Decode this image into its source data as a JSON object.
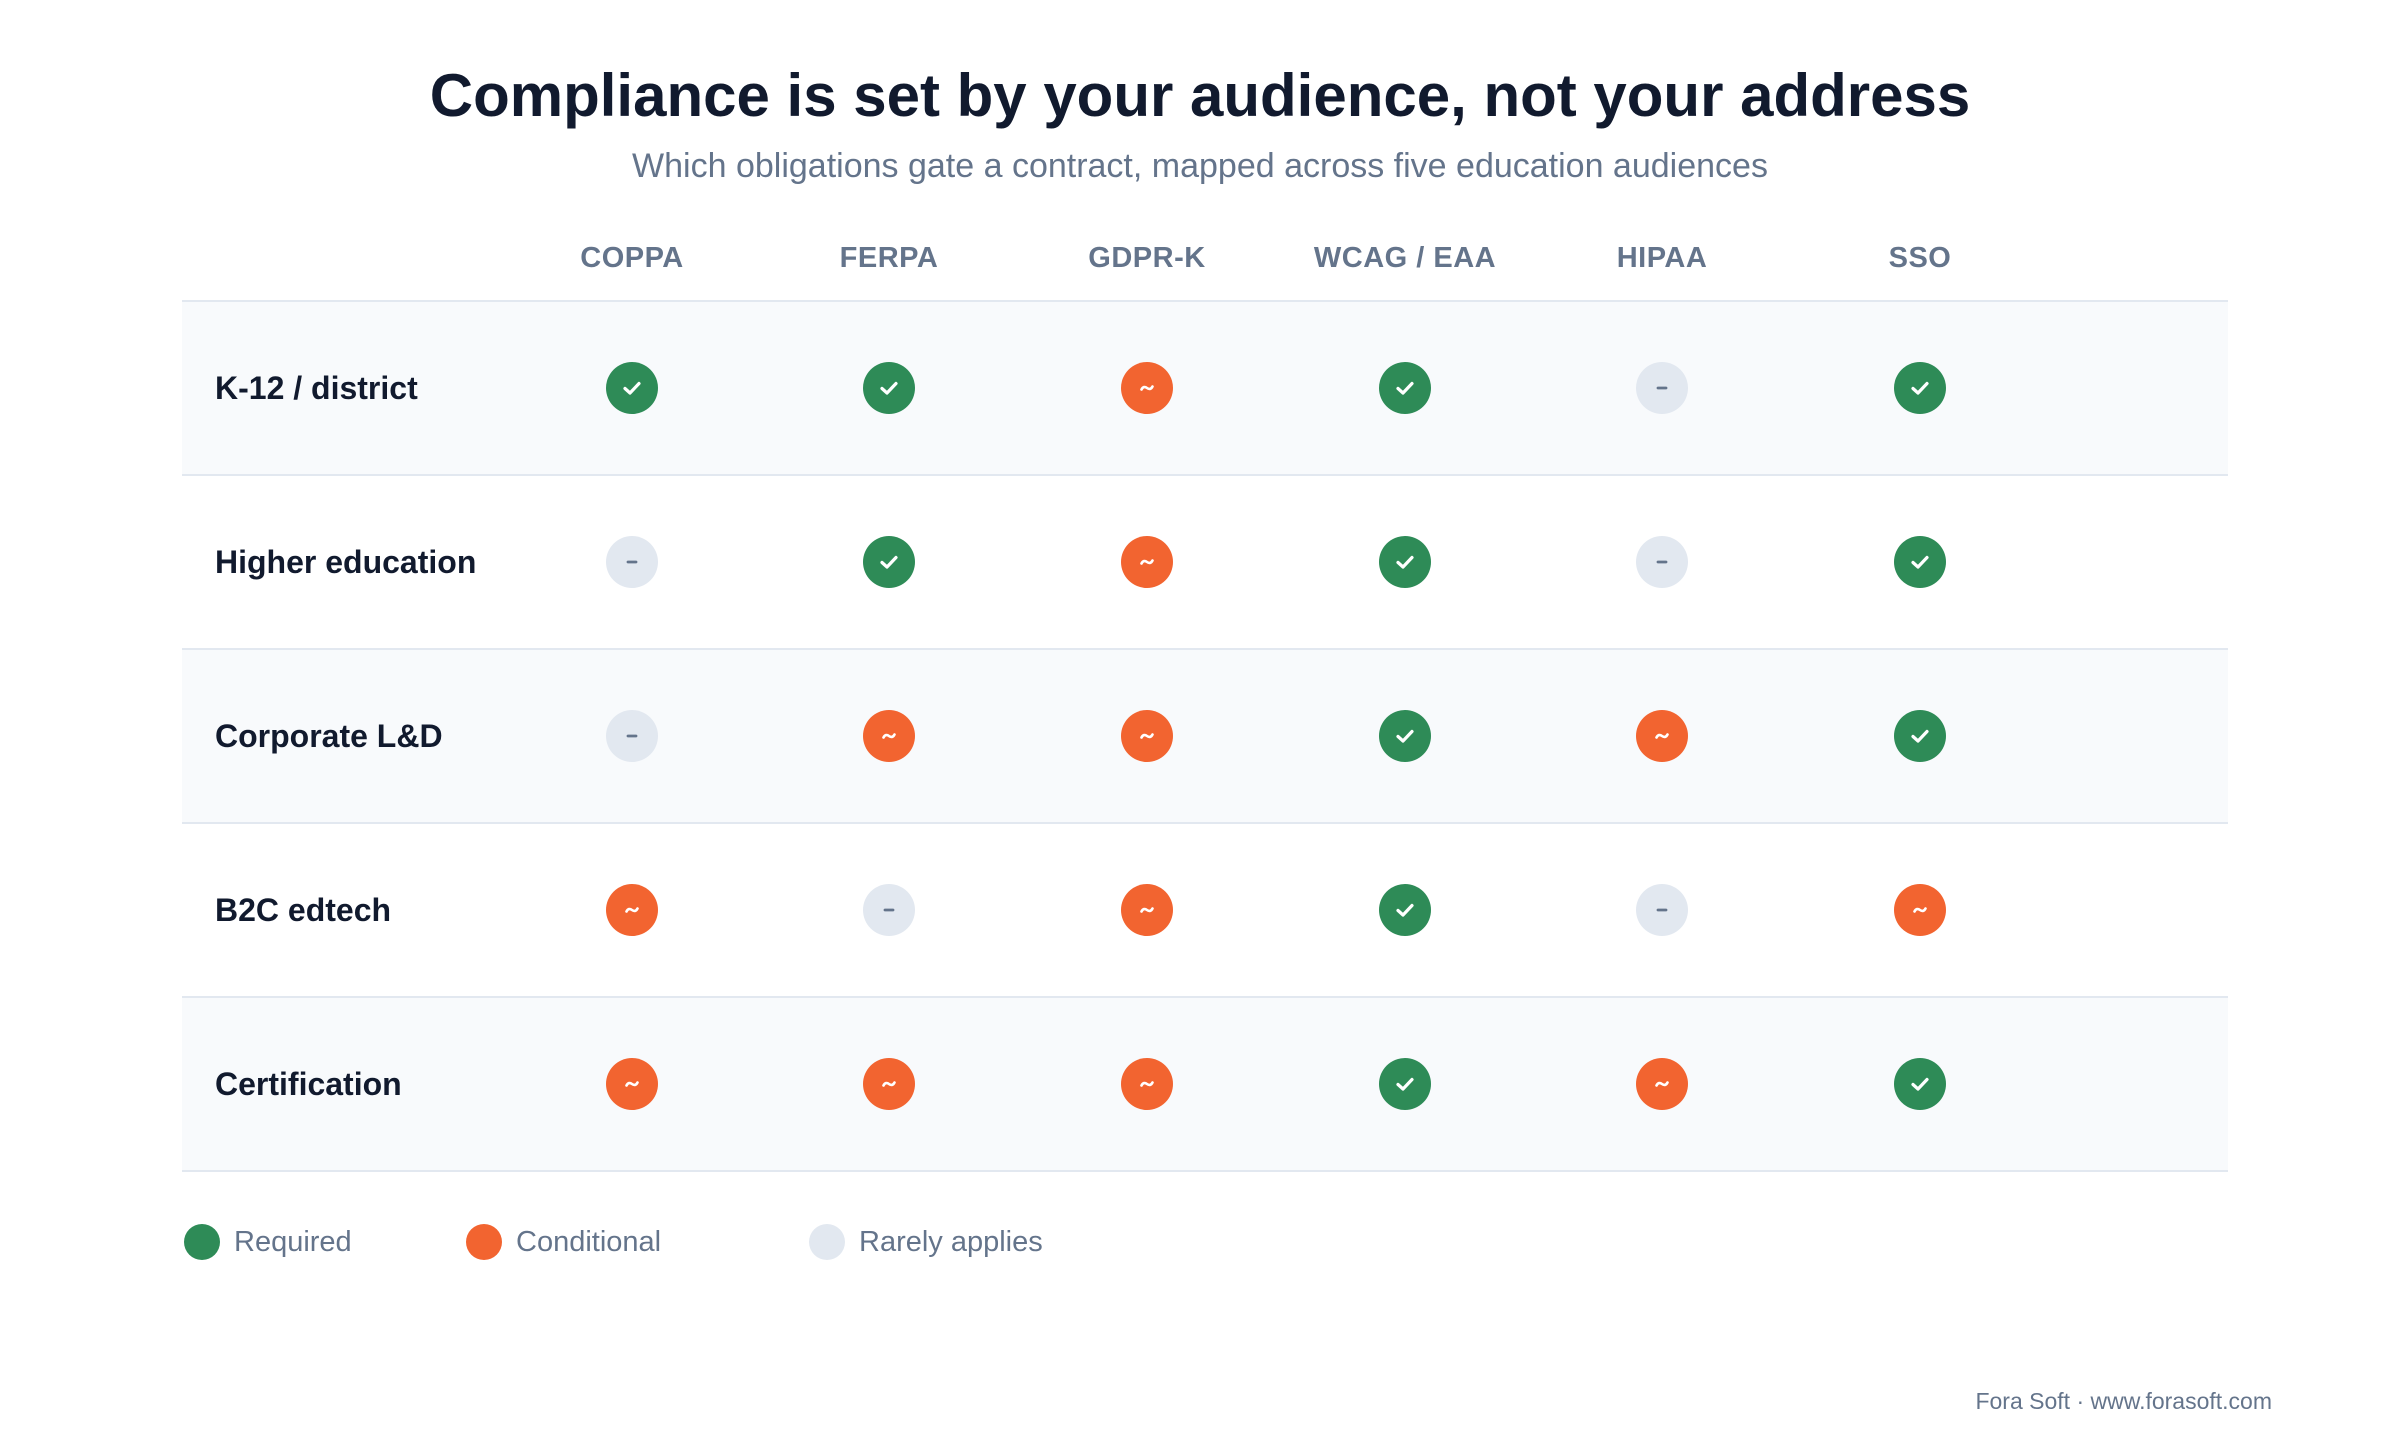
{
  "title": "Compliance is set by your audience, not your address",
  "subtitle": "Which obligations gate a contract, mapped across five education audiences",
  "columns": [
    "COPPA",
    "FERPA",
    "GDPR-K",
    "WCAG / EAA",
    "HIPAA",
    "SSO"
  ],
  "rows": [
    {
      "label": "K-12 / district",
      "statuses": [
        "required",
        "required",
        "conditional",
        "required",
        "rare",
        "required"
      ]
    },
    {
      "label": "Higher education",
      "statuses": [
        "rare",
        "required",
        "conditional",
        "required",
        "rare",
        "required"
      ]
    },
    {
      "label": "Corporate L&D",
      "statuses": [
        "rare",
        "conditional",
        "conditional",
        "required",
        "conditional",
        "required"
      ]
    },
    {
      "label": "B2C edtech",
      "statuses": [
        "conditional",
        "rare",
        "conditional",
        "required",
        "rare",
        "conditional"
      ]
    },
    {
      "label": "Certification",
      "statuses": [
        "conditional",
        "conditional",
        "conditional",
        "required",
        "conditional",
        "required"
      ]
    }
  ],
  "status_icons": {
    "required": "check-icon",
    "conditional": "tilde-icon",
    "rare": "dash-icon"
  },
  "legend": [
    {
      "status": "required",
      "label": "Required"
    },
    {
      "status": "conditional",
      "label": "Conditional"
    },
    {
      "status": "rare",
      "label": "Rarely applies"
    }
  ],
  "colors": {
    "required": "#2e8b57",
    "conditional": "#f26430",
    "rare": "#e2e8f0",
    "title": "#111a2e",
    "muted": "#64748b"
  },
  "footer": "Fora Soft · www.forasoft.com"
}
